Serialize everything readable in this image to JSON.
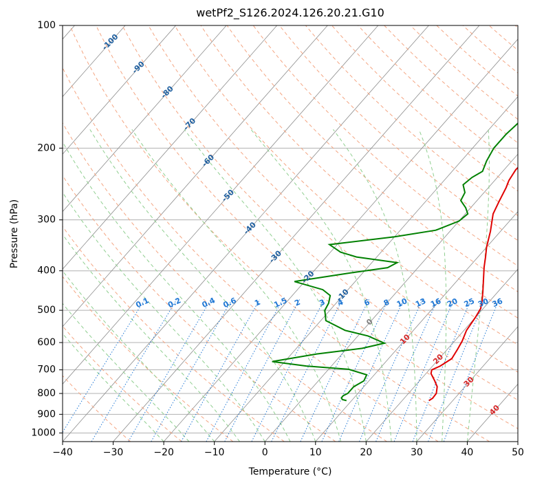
{
  "chart_data": {
    "type": "line",
    "subtype": "skew-t log-p",
    "title": "wetPf2_S126.2024.126.20.21.G10",
    "xlabel": "Temperature (°C)",
    "ylabel": "Pressure (hPa)",
    "xlim": [
      -40,
      50
    ],
    "ylim": [
      1050,
      100
    ],
    "yscale": "log",
    "grid": true,
    "x_ticks": [
      -40,
      -30,
      -20,
      -10,
      0,
      10,
      20,
      30,
      40,
      50
    ],
    "y_ticks": [
      100,
      200,
      300,
      400,
      500,
      600,
      700,
      800,
      900,
      1000
    ],
    "colors": {
      "temperature": "#e00000",
      "dewpoint": "#008000",
      "dry_adiabat": "#f4a582",
      "moist_adiabat": "#8fce8f",
      "mixing_ratio": "#1f77d4",
      "isotherm": "#7f7f7f",
      "isotherm_label": "#1f5f9f"
    },
    "isotherm_labels": [
      "-100",
      "-90",
      "-80",
      "-70",
      "-60",
      "-50",
      "-40",
      "-30",
      "-20",
      "-10",
      "0",
      "10",
      "20",
      "30",
      "40"
    ],
    "mixing_ratio_labels": [
      "0.1",
      "0.2",
      "0.4",
      "0.6",
      "1",
      "1.5",
      "2",
      "3",
      "4",
      "6",
      "8",
      "10",
      "13",
      "16",
      "20",
      "25",
      "30",
      "36"
    ],
    "series": [
      {
        "name": "temperature",
        "points": [
          [
            13.5,
            100
          ],
          [
            12.5,
            104
          ],
          [
            11,
            110
          ],
          [
            10,
            118
          ],
          [
            8.5,
            126
          ],
          [
            6.3,
            132
          ],
          [
            5,
            137
          ],
          [
            4.5,
            145
          ],
          [
            4.2,
            152
          ],
          [
            4,
            160
          ],
          [
            4.3,
            170
          ],
          [
            4,
            180
          ],
          [
            3.3,
            200
          ],
          [
            2.5,
            215
          ],
          [
            2.3,
            226
          ],
          [
            2.8,
            240
          ],
          [
            3.5,
            250
          ],
          [
            4.5,
            270
          ],
          [
            5.5,
            290
          ],
          [
            8,
            320
          ],
          [
            10,
            350
          ],
          [
            11.5,
            370
          ],
          [
            13,
            392
          ],
          [
            15,
            420
          ],
          [
            17,
            450
          ],
          [
            18.5,
            475
          ],
          [
            19.5,
            495
          ],
          [
            20,
            520
          ],
          [
            20.5,
            560
          ],
          [
            21.5,
            595
          ],
          [
            22,
            622
          ],
          [
            22.5,
            657
          ],
          [
            21.5,
            685
          ],
          [
            20.5,
            700
          ],
          [
            21,
            715
          ],
          [
            23,
            745
          ],
          [
            24.5,
            770
          ],
          [
            25.5,
            800
          ],
          [
            25.6,
            822
          ],
          [
            25.3,
            833
          ]
        ]
      },
      {
        "name": "dewpoint",
        "points": [
          [
            1,
            100
          ],
          [
            0,
            104
          ],
          [
            -1,
            110
          ],
          [
            -1.8,
            118
          ],
          [
            -2.5,
            126
          ],
          [
            -3.5,
            138
          ],
          [
            -4.5,
            152
          ],
          [
            -4.5,
            160
          ],
          [
            -5.2,
            170
          ],
          [
            -5.8,
            185
          ],
          [
            -5.8,
            200
          ],
          [
            -5,
            215
          ],
          [
            -4,
            228
          ],
          [
            -5,
            236
          ],
          [
            -5.5,
            246
          ],
          [
            -3.8,
            257
          ],
          [
            -3.2,
            269
          ],
          [
            -1,
            280
          ],
          [
            0.5,
            290
          ],
          [
            0,
            302
          ],
          [
            -3,
            318
          ],
          [
            -10,
            330
          ],
          [
            -21.5,
            345
          ],
          [
            -18,
            360
          ],
          [
            -14,
            370
          ],
          [
            -5,
            382
          ],
          [
            -6,
            393
          ],
          [
            -13,
            406
          ],
          [
            -22,
            425
          ],
          [
            -15,
            445
          ],
          [
            -12.5,
            460
          ],
          [
            -11.5,
            480
          ],
          [
            -11,
            500
          ],
          [
            -9,
            530
          ],
          [
            -3.5,
            560
          ],
          [
            2,
            578
          ],
          [
            6.5,
            602
          ],
          [
            3,
            620
          ],
          [
            -5,
            640
          ],
          [
            -12.5,
            668
          ],
          [
            -5,
            685
          ],
          [
            4,
            698
          ],
          [
            8.5,
            720
          ],
          [
            9,
            745
          ],
          [
            8,
            770
          ],
          [
            8,
            800
          ],
          [
            7.5,
            810
          ],
          [
            7.5,
            820
          ],
          [
            8,
            828
          ],
          [
            9,
            833
          ]
        ]
      }
    ]
  }
}
